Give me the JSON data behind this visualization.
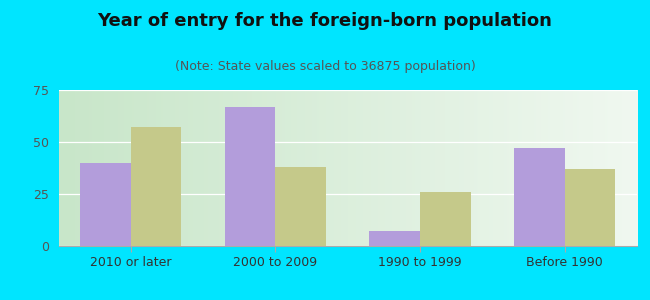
{
  "title": "Year of entry for the foreign-born population",
  "subtitle": "(Note: State values scaled to 36875 population)",
  "categories": [
    "2010 or later",
    "2000 to 2009",
    "1990 to 1999",
    "Before 1990"
  ],
  "series_36875": [
    40,
    67,
    7,
    47
  ],
  "series_alabama": [
    57,
    38,
    26,
    37
  ],
  "color_36875": "#b39ddb",
  "color_alabama": "#c5c98a",
  "ylim": [
    0,
    75
  ],
  "yticks": [
    0,
    25,
    50,
    75
  ],
  "background_outer": "#00e5ff",
  "bar_width": 0.35,
  "title_fontsize": 13,
  "subtitle_fontsize": 9,
  "tick_fontsize": 9,
  "legend_fontsize": 10,
  "grad_left": "#c8e6c9",
  "grad_right": "#f0f8f0"
}
